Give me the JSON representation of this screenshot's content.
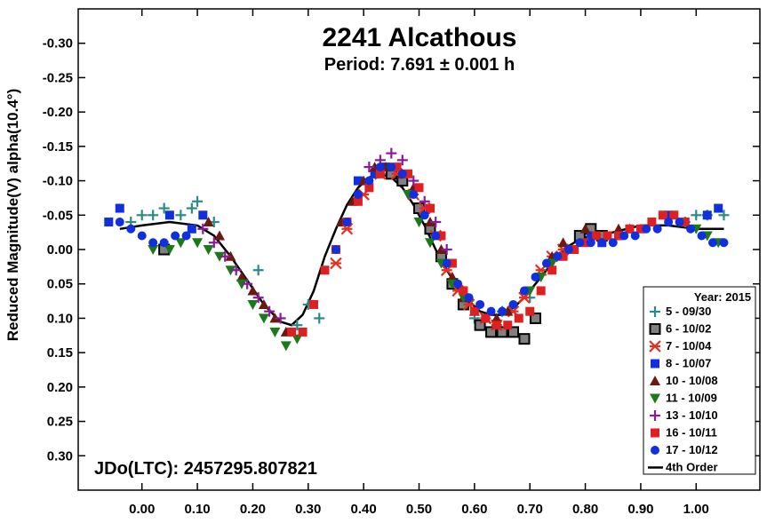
{
  "chart_data": {
    "type": "scatter",
    "title": "2241 Alcathous",
    "subtitle": "Period: 7.691 ± 0.001 h",
    "ylabel": "Reduced Magnitude(V) alpha(10.4°)",
    "xlabel": "",
    "annotation": "JDo(LTC): 2457295.807821",
    "xlim": [
      -0.115,
      1.115
    ],
    "ylim": [
      -0.35,
      0.35
    ],
    "y_inverted": true,
    "grid": false,
    "legend_title": "Year: 2015",
    "legend_position": "bottom-right",
    "x_ticks": [
      {
        "value": 0.0,
        "label": "0.00"
      },
      {
        "value": 0.1,
        "label": "0.10"
      },
      {
        "value": 0.2,
        "label": "0.20"
      },
      {
        "value": 0.3,
        "label": "0.30"
      },
      {
        "value": 0.4,
        "label": "0.40"
      },
      {
        "value": 0.5,
        "label": "0.50"
      },
      {
        "value": 0.6,
        "label": "0.60"
      },
      {
        "value": 0.7,
        "label": "0.70"
      },
      {
        "value": 0.8,
        "label": "0.80"
      },
      {
        "value": 0.9,
        "label": "0.90"
      },
      {
        "value": 1.0,
        "label": "1.00"
      }
    ],
    "y_ticks": [
      {
        "value": -0.3,
        "label": "-0.30"
      },
      {
        "value": -0.25,
        "label": "-0.25"
      },
      {
        "value": -0.2,
        "label": "-0.20"
      },
      {
        "value": -0.15,
        "label": "-0.15"
      },
      {
        "value": -0.1,
        "label": "-0.10"
      },
      {
        "value": -0.05,
        "label": "-0.05"
      },
      {
        "value": 0.0,
        "label": "0.00"
      },
      {
        "value": 0.05,
        "label": "0.05"
      },
      {
        "value": 0.1,
        "label": "0.10"
      },
      {
        "value": 0.15,
        "label": "0.15"
      },
      {
        "value": 0.2,
        "label": "0.20"
      },
      {
        "value": 0.25,
        "label": "0.25"
      },
      {
        "value": 0.3,
        "label": "0.30"
      }
    ],
    "series": [
      {
        "name": "5 - 09/30",
        "marker": "plus",
        "color": "#2a8a8a",
        "points": [
          [
            -0.02,
            -0.04
          ],
          [
            0.0,
            -0.05
          ],
          [
            0.02,
            -0.05
          ],
          [
            0.04,
            -0.06
          ],
          [
            0.07,
            -0.05
          ],
          [
            0.09,
            -0.06
          ],
          [
            0.1,
            -0.07
          ],
          [
            0.13,
            -0.04
          ],
          [
            0.21,
            0.03
          ],
          [
            0.28,
            0.11
          ],
          [
            0.3,
            0.08
          ],
          [
            0.32,
            0.1
          ],
          [
            0.6,
            0.1
          ],
          [
            0.65,
            0.09
          ],
          [
            0.7,
            0.07
          ],
          [
            0.98,
            -0.04
          ],
          [
            1.0,
            -0.05
          ],
          [
            1.02,
            -0.05
          ],
          [
            1.05,
            -0.05
          ]
        ]
      },
      {
        "name": "6 - 10/02",
        "marker": "square-open",
        "color": "#808080",
        "points": [
          [
            0.04,
            0.0
          ],
          [
            0.45,
            -0.11
          ],
          [
            0.47,
            -0.1
          ],
          [
            0.5,
            -0.06
          ],
          [
            0.52,
            -0.03
          ],
          [
            0.54,
            0.01
          ],
          [
            0.56,
            0.05
          ],
          [
            0.58,
            0.08
          ],
          [
            0.61,
            0.11
          ],
          [
            0.63,
            0.12
          ],
          [
            0.65,
            0.12
          ],
          [
            0.67,
            0.12
          ],
          [
            0.69,
            0.13
          ],
          [
            0.71,
            0.1
          ],
          [
            0.79,
            -0.02
          ],
          [
            0.81,
            -0.03
          ],
          [
            0.83,
            -0.02
          ]
        ]
      },
      {
        "name": "7 - 10/04",
        "marker": "asterisk",
        "color": "#e03020",
        "points": [
          [
            0.35,
            0.02
          ],
          [
            0.37,
            -0.03
          ],
          [
            0.4,
            -0.08
          ],
          [
            0.43,
            -0.11
          ],
          [
            0.46,
            -0.11
          ],
          [
            0.49,
            -0.08
          ],
          [
            0.51,
            -0.06
          ],
          [
            0.53,
            -0.02
          ],
          [
            0.55,
            0.03
          ],
          [
            0.57,
            0.06
          ],
          [
            0.59,
            0.08
          ],
          [
            0.62,
            0.1
          ],
          [
            0.64,
            0.11
          ],
          [
            0.67,
            0.09
          ],
          [
            0.69,
            0.07
          ],
          [
            0.72,
            0.03
          ],
          [
            0.74,
            0.01
          ],
          [
            0.76,
            0.0
          ]
        ]
      },
      {
        "name": "8 - 10/07",
        "marker": "square-filled",
        "color": "#1030e0",
        "points": [
          [
            -0.06,
            -0.04
          ],
          [
            -0.04,
            -0.06
          ],
          [
            0.05,
            -0.05
          ],
          [
            0.09,
            -0.03
          ],
          [
            0.11,
            -0.05
          ],
          [
            0.39,
            -0.1
          ],
          [
            0.42,
            -0.11
          ],
          [
            0.44,
            -0.12
          ],
          [
            0.81,
            -0.02
          ],
          [
            0.83,
            -0.01
          ],
          [
            0.95,
            -0.05
          ],
          [
            1.02,
            -0.05
          ],
          [
            1.04,
            -0.06
          ]
        ]
      },
      {
        "name": "10 - 10/08",
        "marker": "triangle-up",
        "color": "#6a1a10",
        "points": [
          [
            0.12,
            -0.04
          ],
          [
            0.14,
            -0.02
          ],
          [
            0.16,
            0.01
          ],
          [
            0.18,
            0.04
          ],
          [
            0.2,
            0.06
          ],
          [
            0.22,
            0.08
          ],
          [
            0.24,
            0.1
          ],
          [
            0.26,
            0.12
          ],
          [
            0.36,
            -0.04
          ],
          [
            0.38,
            -0.07
          ],
          [
            0.4,
            -0.1
          ],
          [
            0.42,
            -0.12
          ],
          [
            0.44,
            -0.12
          ],
          [
            0.47,
            -0.11
          ],
          [
            0.49,
            -0.09
          ],
          [
            0.52,
            -0.04
          ],
          [
            0.54,
            0.0
          ],
          [
            0.56,
            0.04
          ],
          [
            0.58,
            0.07
          ],
          [
            0.6,
            0.09
          ],
          [
            0.62,
            0.1
          ],
          [
            0.64,
            0.1
          ],
          [
            0.66,
            0.09
          ],
          [
            0.74,
            0.01
          ],
          [
            0.76,
            -0.01
          ],
          [
            0.8,
            -0.03
          ],
          [
            0.84,
            -0.02
          ],
          [
            0.86,
            -0.03
          ],
          [
            0.88,
            -0.03
          ]
        ]
      },
      {
        "name": "11 - 10/09",
        "marker": "triangle-down",
        "color": "#1a7a1a",
        "points": [
          [
            0.02,
            0.0
          ],
          [
            0.05,
            0.0
          ],
          [
            0.07,
            -0.01
          ],
          [
            0.1,
            -0.01
          ],
          [
            0.12,
            0.0
          ],
          [
            0.14,
            0.01
          ],
          [
            0.16,
            0.03
          ],
          [
            0.18,
            0.05
          ],
          [
            0.2,
            0.08
          ],
          [
            0.22,
            0.1
          ],
          [
            0.24,
            0.12
          ],
          [
            0.26,
            0.14
          ],
          [
            0.28,
            0.13
          ],
          [
            0.48,
            -0.08
          ],
          [
            0.5,
            -0.04
          ],
          [
            0.52,
            -0.01
          ],
          [
            0.54,
            0.02
          ],
          [
            0.56,
            0.05
          ],
          [
            0.58,
            0.07
          ],
          [
            0.7,
            0.06
          ],
          [
            0.72,
            0.04
          ],
          [
            0.74,
            0.02
          ],
          [
            1.0,
            -0.03
          ],
          [
            1.02,
            -0.02
          ],
          [
            1.04,
            -0.01
          ]
        ]
      },
      {
        "name": "13 - 10/10",
        "marker": "plus",
        "color": "#8a1a9a",
        "points": [
          [
            0.11,
            -0.03
          ],
          [
            0.13,
            -0.01
          ],
          [
            0.15,
            0.01
          ],
          [
            0.17,
            0.03
          ],
          [
            0.19,
            0.05
          ],
          [
            0.21,
            0.07
          ],
          [
            0.23,
            0.09
          ],
          [
            0.25,
            0.1
          ],
          [
            0.41,
            -0.12
          ],
          [
            0.43,
            -0.13
          ],
          [
            0.45,
            -0.14
          ],
          [
            0.47,
            -0.13
          ],
          [
            0.49,
            -0.1
          ],
          [
            0.51,
            -0.07
          ],
          [
            0.53,
            -0.04
          ],
          [
            0.55,
            0.0
          ]
        ]
      },
      {
        "name": "16 - 10/11",
        "marker": "square-filled",
        "color": "#e02020",
        "points": [
          [
            0.27,
            0.12
          ],
          [
            0.29,
            0.12
          ],
          [
            0.31,
            0.08
          ],
          [
            0.33,
            0.03
          ],
          [
            0.35,
            0.0
          ],
          [
            0.37,
            -0.04
          ],
          [
            0.39,
            -0.07
          ],
          [
            0.41,
            -0.09
          ],
          [
            0.43,
            -0.11
          ],
          [
            0.46,
            -0.12
          ],
          [
            0.48,
            -0.11
          ],
          [
            0.5,
            -0.09
          ],
          [
            0.52,
            -0.06
          ],
          [
            0.54,
            -0.02
          ],
          [
            0.56,
            0.02
          ],
          [
            0.58,
            0.06
          ],
          [
            0.6,
            0.09
          ],
          [
            0.62,
            0.1
          ],
          [
            0.64,
            0.11
          ],
          [
            0.66,
            0.11
          ],
          [
            0.68,
            0.1
          ],
          [
            0.7,
            0.09
          ],
          [
            0.72,
            0.06
          ],
          [
            0.74,
            0.03
          ],
          [
            0.76,
            0.01
          ],
          [
            0.78,
            0.0
          ],
          [
            0.8,
            -0.01
          ],
          [
            0.82,
            -0.02
          ],
          [
            0.84,
            -0.02
          ],
          [
            0.86,
            -0.02
          ],
          [
            0.88,
            -0.03
          ],
          [
            0.9,
            -0.03
          ],
          [
            0.92,
            -0.04
          ],
          [
            0.94,
            -0.05
          ],
          [
            0.96,
            -0.05
          ],
          [
            0.98,
            -0.04
          ]
        ]
      },
      {
        "name": "17 - 10/12",
        "marker": "circle",
        "color": "#1030e0",
        "points": [
          [
            -0.04,
            -0.04
          ],
          [
            -0.02,
            -0.03
          ],
          [
            0.0,
            -0.02
          ],
          [
            0.02,
            -0.01
          ],
          [
            0.04,
            -0.01
          ],
          [
            0.06,
            -0.02
          ],
          [
            0.08,
            -0.02
          ],
          [
            0.35,
            0.0
          ],
          [
            0.37,
            -0.04
          ],
          [
            0.39,
            -0.08
          ],
          [
            0.41,
            -0.1
          ],
          [
            0.43,
            -0.12
          ],
          [
            0.45,
            -0.12
          ],
          [
            0.47,
            -0.11
          ],
          [
            0.49,
            -0.08
          ],
          [
            0.51,
            -0.05
          ],
          [
            0.53,
            -0.02
          ],
          [
            0.55,
            0.02
          ],
          [
            0.57,
            0.05
          ],
          [
            0.59,
            0.07
          ],
          [
            0.61,
            0.08
          ],
          [
            0.63,
            0.09
          ],
          [
            0.65,
            0.09
          ],
          [
            0.67,
            0.08
          ],
          [
            0.69,
            0.06
          ],
          [
            0.71,
            0.04
          ],
          [
            0.73,
            0.02
          ],
          [
            0.75,
            0.01
          ],
          [
            0.77,
            0.0
          ],
          [
            0.79,
            -0.01
          ],
          [
            0.81,
            -0.01
          ],
          [
            0.83,
            -0.01
          ],
          [
            0.85,
            -0.01
          ],
          [
            0.87,
            -0.02
          ],
          [
            0.89,
            -0.02
          ],
          [
            0.91,
            -0.03
          ],
          [
            0.93,
            -0.03
          ],
          [
            0.95,
            -0.04
          ],
          [
            0.97,
            -0.04
          ],
          [
            0.99,
            -0.03
          ],
          [
            1.01,
            -0.02
          ],
          [
            1.03,
            -0.01
          ],
          [
            1.05,
            -0.01
          ]
        ]
      }
    ],
    "fit": {
      "name": "4th Order",
      "color": "#000000",
      "points": [
        [
          -0.04,
          -0.03
        ],
        [
          0.0,
          -0.035
        ],
        [
          0.05,
          -0.04
        ],
        [
          0.1,
          -0.035
        ],
        [
          0.13,
          -0.02
        ],
        [
          0.16,
          0.01
        ],
        [
          0.19,
          0.045
        ],
        [
          0.22,
          0.08
        ],
        [
          0.25,
          0.105
        ],
        [
          0.27,
          0.11
        ],
        [
          0.29,
          0.095
        ],
        [
          0.31,
          0.06
        ],
        [
          0.33,
          0.01
        ],
        [
          0.35,
          -0.03
        ],
        [
          0.37,
          -0.065
        ],
        [
          0.39,
          -0.09
        ],
        [
          0.41,
          -0.105
        ],
        [
          0.43,
          -0.11
        ],
        [
          0.45,
          -0.105
        ],
        [
          0.47,
          -0.09
        ],
        [
          0.49,
          -0.065
        ],
        [
          0.51,
          -0.035
        ],
        [
          0.53,
          0.0
        ],
        [
          0.55,
          0.03
        ],
        [
          0.57,
          0.055
        ],
        [
          0.59,
          0.075
        ],
        [
          0.61,
          0.09
        ],
        [
          0.63,
          0.095
        ],
        [
          0.65,
          0.095
        ],
        [
          0.67,
          0.085
        ],
        [
          0.69,
          0.07
        ],
        [
          0.71,
          0.05
        ],
        [
          0.73,
          0.03
        ],
        [
          0.75,
          0.01
        ],
        [
          0.77,
          -0.005
        ],
        [
          0.79,
          -0.015
        ],
        [
          0.81,
          -0.02
        ],
        [
          0.85,
          -0.025
        ],
        [
          0.9,
          -0.035
        ],
        [
          0.95,
          -0.035
        ],
        [
          1.0,
          -0.03
        ],
        [
          1.05,
          -0.03
        ]
      ]
    }
  }
}
